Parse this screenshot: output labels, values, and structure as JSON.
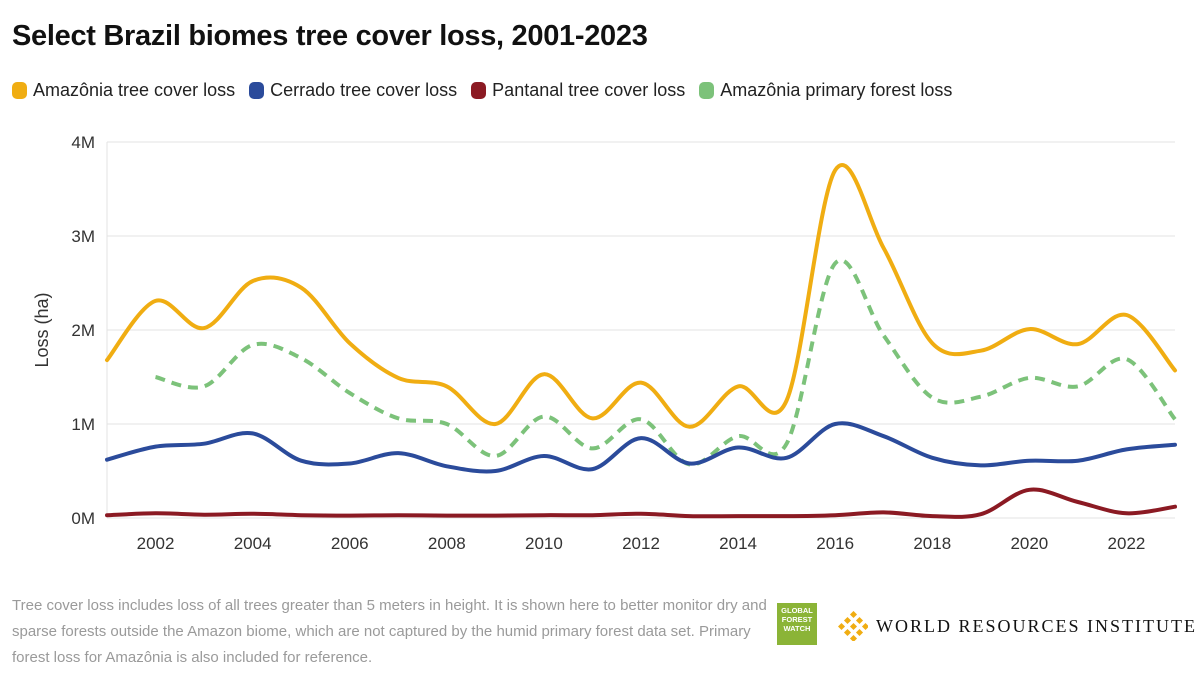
{
  "title": "Select Brazil biomes tree cover loss, 2001-2023",
  "footnote": "Tree cover loss includes loss of all trees greater than 5 meters in height. It is shown here to better monitor dry and sparse forests outside the Amazon biome, which are not captured by the humid primary forest data set. Primary forest loss for Amazônia is also included for reference.",
  "logos": {
    "gfw": [
      "GLOBAL",
      "FOREST",
      "WATCH"
    ],
    "wri": "WORLD RESOURCES INSTITUTE"
  },
  "colors": {
    "amazonia": "#f0ad12",
    "cerrado": "#2b4b9b",
    "pantanal": "#8b1a23",
    "primary": "#7cc27a",
    "grid": "#e3e3e3",
    "axis_text": "#333333"
  },
  "chart_data": {
    "type": "line",
    "ylabel": "Loss (ha)",
    "xlim": [
      2001,
      2023
    ],
    "ylim": [
      0,
      4000000
    ],
    "yticks": [
      0,
      1000000,
      2000000,
      3000000,
      4000000
    ],
    "yticklabels": [
      "0M",
      "1M",
      "2M",
      "3M",
      "4M"
    ],
    "xticks": [
      2002,
      2004,
      2006,
      2008,
      2010,
      2012,
      2014,
      2016,
      2018,
      2020,
      2022
    ],
    "grid": true,
    "legend_position": "top-left",
    "series": [
      {
        "name": "Amazônia tree cover loss",
        "color": "#f0ad12",
        "dashed": false,
        "x": [
          2001,
          2002,
          2003,
          2004,
          2005,
          2006,
          2007,
          2008,
          2009,
          2010,
          2011,
          2012,
          2013,
          2014,
          2015,
          2016,
          2017,
          2018,
          2019,
          2020,
          2021,
          2022,
          2023
        ],
        "values": [
          1680000,
          2310000,
          2020000,
          2520000,
          2450000,
          1860000,
          1490000,
          1400000,
          1000000,
          1530000,
          1060000,
          1440000,
          970000,
          1400000,
          1250000,
          3700000,
          2870000,
          1860000,
          1780000,
          2010000,
          1850000,
          2160000,
          1570000
        ]
      },
      {
        "name": "Cerrado tree cover loss",
        "color": "#2b4b9b",
        "dashed": false,
        "x": [
          2001,
          2002,
          2003,
          2004,
          2005,
          2006,
          2007,
          2008,
          2009,
          2010,
          2011,
          2012,
          2013,
          2014,
          2015,
          2016,
          2017,
          2018,
          2019,
          2020,
          2021,
          2022,
          2023
        ],
        "values": [
          620000,
          760000,
          790000,
          900000,
          610000,
          580000,
          690000,
          550000,
          500000,
          660000,
          520000,
          850000,
          580000,
          750000,
          640000,
          1000000,
          870000,
          640000,
          560000,
          610000,
          610000,
          730000,
          780000
        ]
      },
      {
        "name": "Pantanal tree cover loss",
        "color": "#8b1a23",
        "dashed": false,
        "x": [
          2001,
          2002,
          2003,
          2004,
          2005,
          2006,
          2007,
          2008,
          2009,
          2010,
          2011,
          2012,
          2013,
          2014,
          2015,
          2016,
          2017,
          2018,
          2019,
          2020,
          2021,
          2022,
          2023
        ],
        "values": [
          30000,
          50000,
          35000,
          45000,
          30000,
          25000,
          30000,
          25000,
          25000,
          30000,
          30000,
          45000,
          20000,
          20000,
          20000,
          30000,
          60000,
          20000,
          40000,
          300000,
          170000,
          50000,
          120000
        ]
      },
      {
        "name": "Amazônia primary forest loss",
        "color": "#7cc27a",
        "dashed": true,
        "x": [
          2002,
          2003,
          2004,
          2005,
          2006,
          2007,
          2008,
          2009,
          2010,
          2011,
          2012,
          2013,
          2014,
          2015,
          2016,
          2017,
          2018,
          2019,
          2020,
          2021,
          2022,
          2023
        ],
        "values": [
          1500000,
          1400000,
          1840000,
          1700000,
          1330000,
          1060000,
          1000000,
          660000,
          1080000,
          740000,
          1050000,
          570000,
          870000,
          790000,
          2710000,
          1940000,
          1280000,
          1290000,
          1490000,
          1400000,
          1690000,
          1050000
        ]
      }
    ]
  }
}
